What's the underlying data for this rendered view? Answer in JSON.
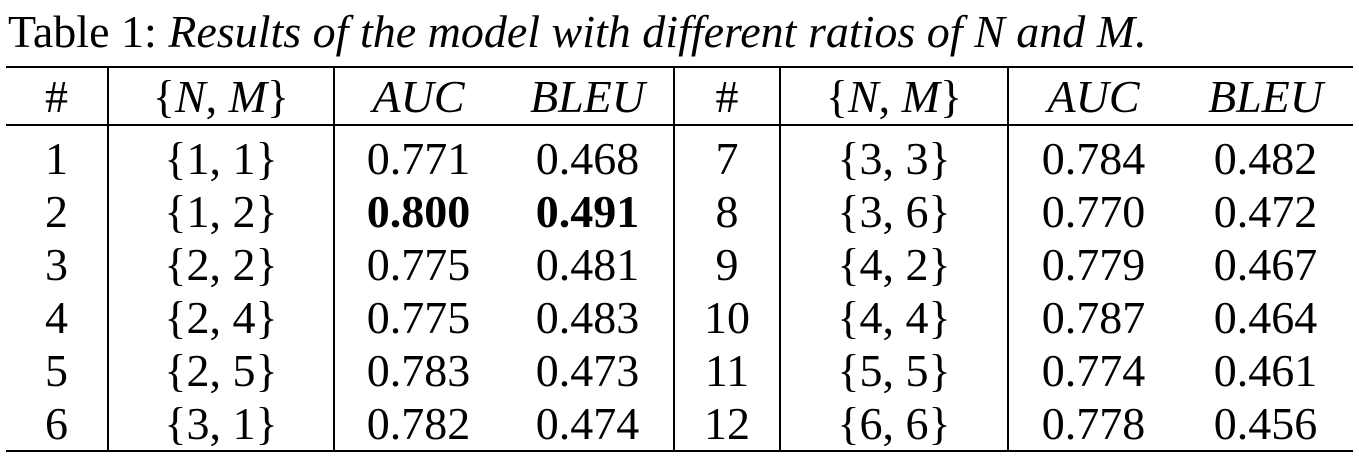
{
  "caption": {
    "label": "Table 1:",
    "text": "Results of the model with different ratios of N and M."
  },
  "table": {
    "headers": [
      "#",
      "{N, M}",
      "AUC",
      "BLEU",
      "#",
      "{N, M}",
      "AUC",
      "BLEU"
    ],
    "header_nm": {
      "open": "{",
      "n": "N",
      "sep": ", ",
      "m": "M",
      "close": "}"
    },
    "rows": [
      {
        "left": {
          "id": "1",
          "nm": "{1, 1}",
          "auc": "0.771",
          "bleu": "0.468"
        },
        "right": {
          "id": "7",
          "nm": "{3, 3}",
          "auc": "0.784",
          "bleu": "0.482"
        }
      },
      {
        "left": {
          "id": "2",
          "nm": "{1, 2}",
          "auc": "0.800",
          "bleu": "0.491"
        },
        "right": {
          "id": "8",
          "nm": "{3, 6}",
          "auc": "0.770",
          "bleu": "0.472"
        }
      },
      {
        "left": {
          "id": "3",
          "nm": "{2, 2}",
          "auc": "0.775",
          "bleu": "0.481"
        },
        "right": {
          "id": "9",
          "nm": "{4, 2}",
          "auc": "0.779",
          "bleu": "0.467"
        }
      },
      {
        "left": {
          "id": "4",
          "nm": "{2, 4}",
          "auc": "0.775",
          "bleu": "0.483"
        },
        "right": {
          "id": "10",
          "nm": "{4, 4}",
          "auc": "0.787",
          "bleu": "0.464"
        }
      },
      {
        "left": {
          "id": "5",
          "nm": "{2, 5}",
          "auc": "0.783",
          "bleu": "0.473"
        },
        "right": {
          "id": "11",
          "nm": "{5, 5}",
          "auc": "0.774",
          "bleu": "0.461"
        }
      },
      {
        "left": {
          "id": "6",
          "nm": "{3, 1}",
          "auc": "0.782",
          "bleu": "0.474"
        },
        "right": {
          "id": "12",
          "nm": "{6, 6}",
          "auc": "0.778",
          "bleu": "0.456"
        }
      }
    ]
  }
}
